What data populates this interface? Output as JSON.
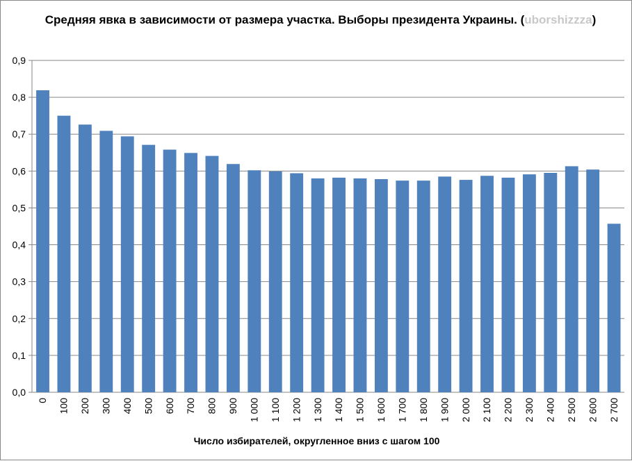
{
  "chart_data": {
    "type": "bar",
    "title": "Средняя явка в зависимости от размера участка. Выборы президента Украины.",
    "title_suffix_open": "(",
    "watermark": "uborshizzza",
    "title_suffix_close": ")",
    "xlabel": "Число избирателей, округленное вниз с шагом 100",
    "ylabel": "",
    "ylim": [
      0,
      0.9
    ],
    "yticks": [
      "0,0",
      "0,1",
      "0,2",
      "0,3",
      "0,4",
      "0,5",
      "0,6",
      "0,7",
      "0,8",
      "0,9"
    ],
    "grid": true,
    "bar_color": "#4f81bd",
    "categories": [
      "0",
      "100",
      "200",
      "300",
      "400",
      "500",
      "600",
      "700",
      "800",
      "900",
      "1 000",
      "1 100",
      "1 200",
      "1 300",
      "1 400",
      "1 500",
      "1 600",
      "1 700",
      "1 800",
      "1 900",
      "2 000",
      "2 100",
      "2 200",
      "2 300",
      "2 400",
      "2 500",
      "2 600",
      "2 700"
    ],
    "values": [
      0.819,
      0.75,
      0.726,
      0.709,
      0.694,
      0.671,
      0.658,
      0.649,
      0.641,
      0.619,
      0.602,
      0.599,
      0.594,
      0.58,
      0.582,
      0.58,
      0.578,
      0.574,
      0.574,
      0.585,
      0.576,
      0.587,
      0.582,
      0.591,
      0.595,
      0.613,
      0.604,
      0.457
    ]
  }
}
